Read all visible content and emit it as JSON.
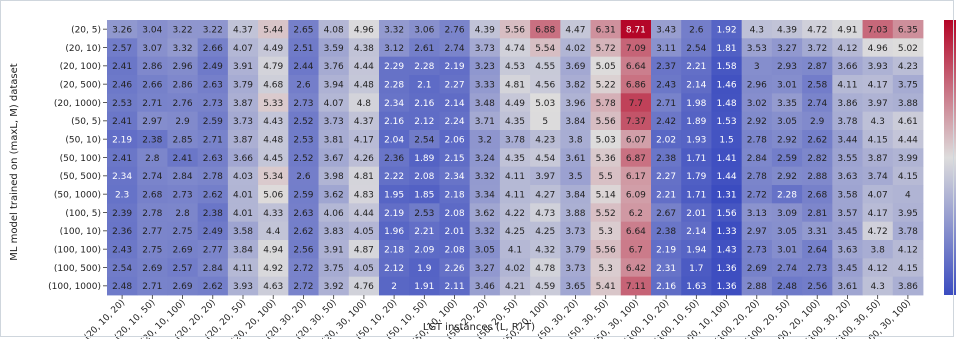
{
  "chart_data": {
    "type": "heatmap",
    "xlabel": "LGT instances (L, R, T)",
    "ylabel": "ML model trained on (maxL, M) dataset",
    "x_categories": [
      "(20, 10, 20)",
      "(20, 10, 50)",
      "(20, 10, 100)",
      "(20, 20, 20)",
      "(20, 20, 50)",
      "(20, 20, 100)",
      "(20, 30, 20)",
      "(20, 30, 50)",
      "(20, 30, 100)",
      "(50, 10, 20)",
      "(50, 10, 50)",
      "(50, 10, 100)",
      "(50, 20, 20)",
      "(50, 20, 50)",
      "(50, 20, 100)",
      "(50, 30, 20)",
      "(50, 30, 50)",
      "(50, 30, 100)",
      "(100, 10, 20)",
      "(100, 10, 50)",
      "(100, 10, 100)",
      "(100, 20, 20)",
      "(100, 20, 50)",
      "(100, 20, 100)",
      "(100, 30, 20)",
      "(100, 30, 50)",
      "(100, 30, 100)"
    ],
    "y_categories": [
      "(20, 5)",
      "(20, 10)",
      "(20, 100)",
      "(20, 500)",
      "(20, 1000)",
      "(50, 5)",
      "(50, 10)",
      "(50, 100)",
      "(50, 500)",
      "(50, 1000)",
      "(100, 5)",
      "(100, 10)",
      "(100, 100)",
      "(100, 500)",
      "(100, 1000)"
    ],
    "values": [
      [
        "3.26",
        "3.04",
        "3.22",
        "3.22",
        "4.37",
        "5.44",
        "2.65",
        "4.08",
        "4.96",
        "3.32",
        "3.06",
        "2.76",
        "4.39",
        "5.56",
        "6.88",
        "4.47",
        "6.31",
        "8.71",
        "3.43",
        "2.6",
        "1.92",
        "4.3",
        "4.39",
        "4.72",
        "4.91",
        "7.03",
        "6.35"
      ],
      [
        "2.57",
        "3.07",
        "3.32",
        "2.66",
        "4.07",
        "4.49",
        "2.51",
        "3.59",
        "4.38",
        "3.12",
        "2.61",
        "2.74",
        "3.73",
        "4.74",
        "5.54",
        "4.02",
        "5.72",
        "7.09",
        "3.11",
        "2.54",
        "1.81",
        "3.53",
        "3.27",
        "3.72",
        "4.12",
        "4.96",
        "5.02"
      ],
      [
        "2.41",
        "2.86",
        "2.96",
        "2.49",
        "3.91",
        "4.79",
        "2.44",
        "3.76",
        "4.44",
        "2.29",
        "2.28",
        "2.19",
        "3.23",
        "4.53",
        "4.55",
        "3.69",
        "5.05",
        "6.64",
        "2.37",
        "2.21",
        "1.58",
        "3",
        "2.93",
        "2.87",
        "3.66",
        "3.93",
        "4.23"
      ],
      [
        "2.46",
        "2.66",
        "2.86",
        "2.63",
        "3.79",
        "4.68",
        "2.6",
        "3.94",
        "4.48",
        "2.28",
        "2.1",
        "2.27",
        "3.33",
        "4.81",
        "4.56",
        "3.82",
        "5.22",
        "6.86",
        "2.43",
        "2.14",
        "1.46",
        "2.96",
        "3.01",
        "2.58",
        "4.11",
        "4.17",
        "3.75"
      ],
      [
        "2.53",
        "2.71",
        "2.76",
        "2.73",
        "3.87",
        "5.33",
        "2.73",
        "4.07",
        "4.8",
        "2.34",
        "2.16",
        "2.14",
        "3.48",
        "4.49",
        "5.03",
        "3.96",
        "5.78",
        "7.7",
        "2.71",
        "1.98",
        "1.48",
        "3.02",
        "3.35",
        "2.74",
        "3.86",
        "3.97",
        "3.88"
      ],
      [
        "2.41",
        "2.97",
        "2.9",
        "2.59",
        "3.73",
        "4.43",
        "2.52",
        "3.73",
        "4.37",
        "2.16",
        "2.12",
        "2.24",
        "3.71",
        "4.35",
        "5",
        "3.84",
        "5.56",
        "7.37",
        "2.42",
        "1.89",
        "1.53",
        "2.92",
        "3.05",
        "2.9",
        "3.78",
        "4.3",
        "4.61"
      ],
      [
        "2.19",
        "2.38",
        "2.85",
        "2.71",
        "3.87",
        "4.48",
        "2.53",
        "3.81",
        "4.17",
        "2.04",
        "2.54",
        "2.06",
        "3.2",
        "3.78",
        "4.23",
        "3.8",
        "5.03",
        "6.07",
        "2.02",
        "1.93",
        "1.5",
        "2.78",
        "2.92",
        "2.62",
        "3.44",
        "4.15",
        "4.44"
      ],
      [
        "2.41",
        "2.8",
        "2.41",
        "2.63",
        "3.66",
        "4.45",
        "2.52",
        "3.67",
        "4.26",
        "2.36",
        "1.89",
        "2.15",
        "3.24",
        "4.35",
        "4.54",
        "3.61",
        "5.36",
        "6.87",
        "2.38",
        "1.71",
        "1.41",
        "2.84",
        "2.59",
        "2.82",
        "3.55",
        "3.87",
        "3.99"
      ],
      [
        "2.34",
        "2.74",
        "2.84",
        "2.78",
        "4.03",
        "5.34",
        "2.6",
        "3.98",
        "4.81",
        "2.22",
        "2.08",
        "2.34",
        "3.32",
        "4.11",
        "3.97",
        "3.5",
        "5.5",
        "6.17",
        "2.27",
        "1.79",
        "1.44",
        "2.78",
        "2.92",
        "2.88",
        "3.63",
        "3.74",
        "4.15"
      ],
      [
        "2.3",
        "2.68",
        "2.73",
        "2.62",
        "4.01",
        "5.06",
        "2.59",
        "3.62",
        "4.83",
        "1.95",
        "1.85",
        "2.18",
        "3.34",
        "4.11",
        "4.27",
        "3.84",
        "5.14",
        "6.09",
        "2.21",
        "1.71",
        "1.31",
        "2.72",
        "2.28",
        "2.68",
        "3.58",
        "4.07",
        "4"
      ],
      [
        "2.39",
        "2.78",
        "2.8",
        "2.38",
        "4.01",
        "4.33",
        "2.63",
        "4.06",
        "4.44",
        "2.19",
        "2.53",
        "2.08",
        "3.62",
        "4.22",
        "4.73",
        "3.88",
        "5.52",
        "6.2",
        "2.67",
        "2.01",
        "1.56",
        "3.13",
        "3.09",
        "2.81",
        "3.57",
        "4.17",
        "3.95"
      ],
      [
        "2.36",
        "2.77",
        "2.75",
        "2.49",
        "3.58",
        "4.4",
        "2.62",
        "3.83",
        "4.05",
        "1.96",
        "2.21",
        "2.01",
        "3.32",
        "4.25",
        "4.25",
        "3.73",
        "5.3",
        "6.64",
        "2.38",
        "2.14",
        "1.33",
        "2.97",
        "3.05",
        "3.31",
        "3.45",
        "4.72",
        "3.78"
      ],
      [
        "2.43",
        "2.75",
        "2.69",
        "2.77",
        "3.84",
        "4.94",
        "2.56",
        "3.91",
        "4.87",
        "2.18",
        "2.09",
        "2.08",
        "3.05",
        "4.1",
        "4.32",
        "3.79",
        "5.56",
        "6.7",
        "2.19",
        "1.94",
        "1.43",
        "2.73",
        "3.01",
        "2.64",
        "3.63",
        "3.8",
        "4.12"
      ],
      [
        "2.54",
        "2.69",
        "2.57",
        "2.84",
        "4.11",
        "4.92",
        "2.72",
        "3.75",
        "4.05",
        "2.12",
        "1.9",
        "2.26",
        "3.27",
        "4.02",
        "4.78",
        "3.73",
        "5.3",
        "6.42",
        "2.31",
        "1.7",
        "1.36",
        "2.69",
        "2.74",
        "2.73",
        "3.45",
        "4.12",
        "4.15"
      ],
      [
        "2.48",
        "2.71",
        "2.69",
        "2.62",
        "3.93",
        "4.63",
        "2.72",
        "3.92",
        "4.76",
        "2",
        "1.91",
        "2.11",
        "3.46",
        "4.21",
        "4.59",
        "3.65",
        "5.41",
        "7.11",
        "2.16",
        "1.63",
        "1.36",
        "2.88",
        "2.48",
        "2.56",
        "3.61",
        "4.3",
        "3.86"
      ]
    ],
    "colormap": "coolwarm",
    "vmin": 1.3,
    "vmax": 8.75,
    "colors": {
      "low": "#3b4cc0",
      "mid": "#dddcdc",
      "high": "#b40426"
    },
    "colorbar": "right",
    "grid": false
  }
}
